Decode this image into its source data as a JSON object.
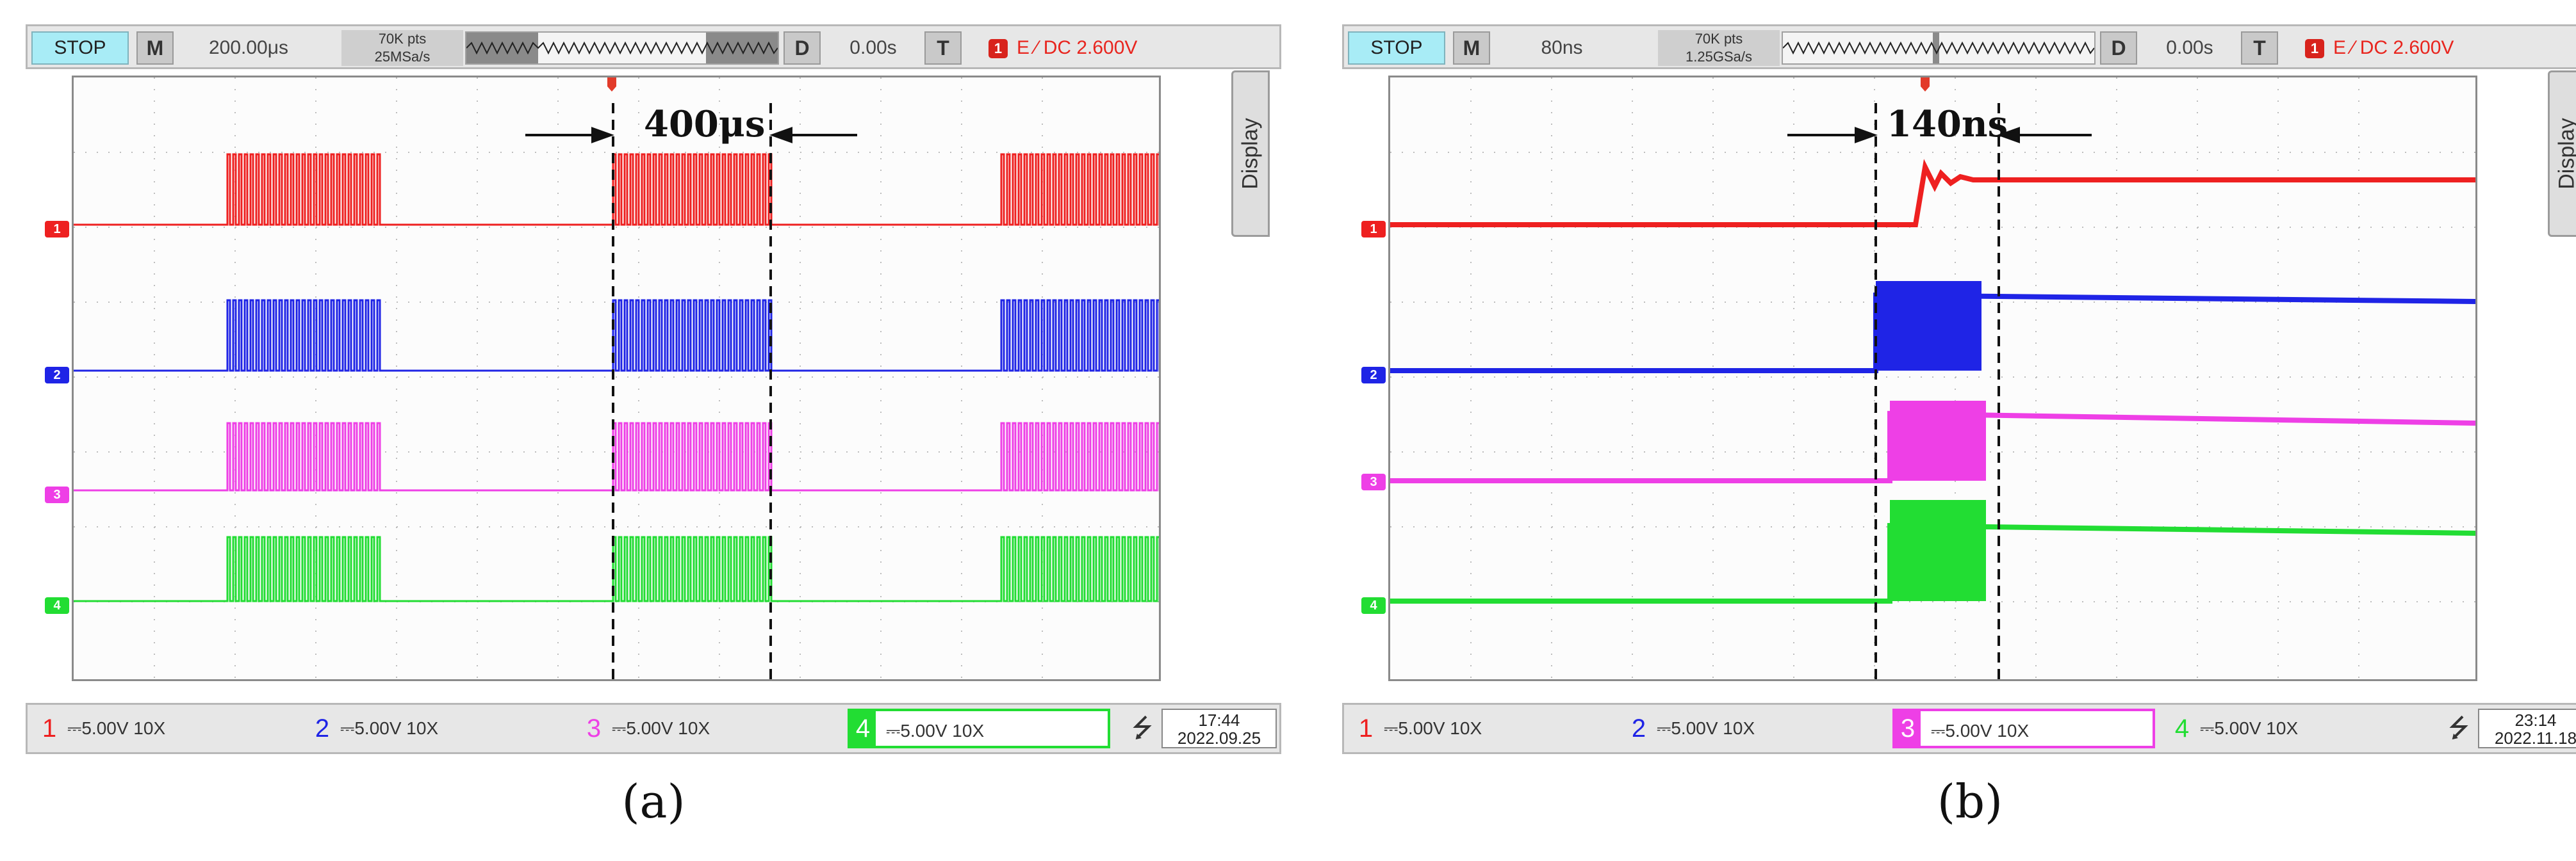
{
  "panels": [
    {
      "id": "a",
      "status": "STOP",
      "m_key": "M",
      "timebase": "200.00μs",
      "memory": {
        "points": "70K pts",
        "rate": "25MSa/s"
      },
      "d_key": "D",
      "delay": "0.00s",
      "t_key": "T",
      "trigger": {
        "channel": "1",
        "text": "E ∕ DC 2.600V"
      },
      "display_tab": "Display",
      "annotation": "400μs",
      "channels": [
        {
          "num": "1",
          "setting": "5.00V 10X",
          "color": "#ee2020"
        },
        {
          "num": "2",
          "setting": "5.00V 10X",
          "color": "#1f24e6"
        },
        {
          "num": "3",
          "setting": "5.00V 10X",
          "color": "#ee3fe6"
        },
        {
          "num": "4",
          "setting": "5.00V 10X",
          "color": "#22dd33"
        }
      ],
      "selected_channel": "4",
      "time": "17:44",
      "date": "2022.09.25",
      "caption": "(a)"
    },
    {
      "id": "b",
      "status": "STOP",
      "m_key": "M",
      "timebase": "80ns",
      "memory": {
        "points": "70K pts",
        "rate": "1.25GSa/s"
      },
      "d_key": "D",
      "delay": "0.00s",
      "t_key": "T",
      "trigger": {
        "channel": "1",
        "text": "E ∕ DC 2.600V"
      },
      "display_tab": "Display",
      "annotation": "140ns",
      "channels": [
        {
          "num": "1",
          "setting": "5.00V 10X",
          "color": "#ee2020"
        },
        {
          "num": "2",
          "setting": "5.00V 10X",
          "color": "#1f24e6"
        },
        {
          "num": "3",
          "setting": "5.00V 10X",
          "color": "#ee3fe6"
        },
        {
          "num": "4",
          "setting": "5.00V 10X",
          "color": "#22dd33"
        }
      ],
      "selected_channel": "3",
      "time": "23:14",
      "date": "2022.11.18",
      "caption": "(b)"
    }
  ]
}
